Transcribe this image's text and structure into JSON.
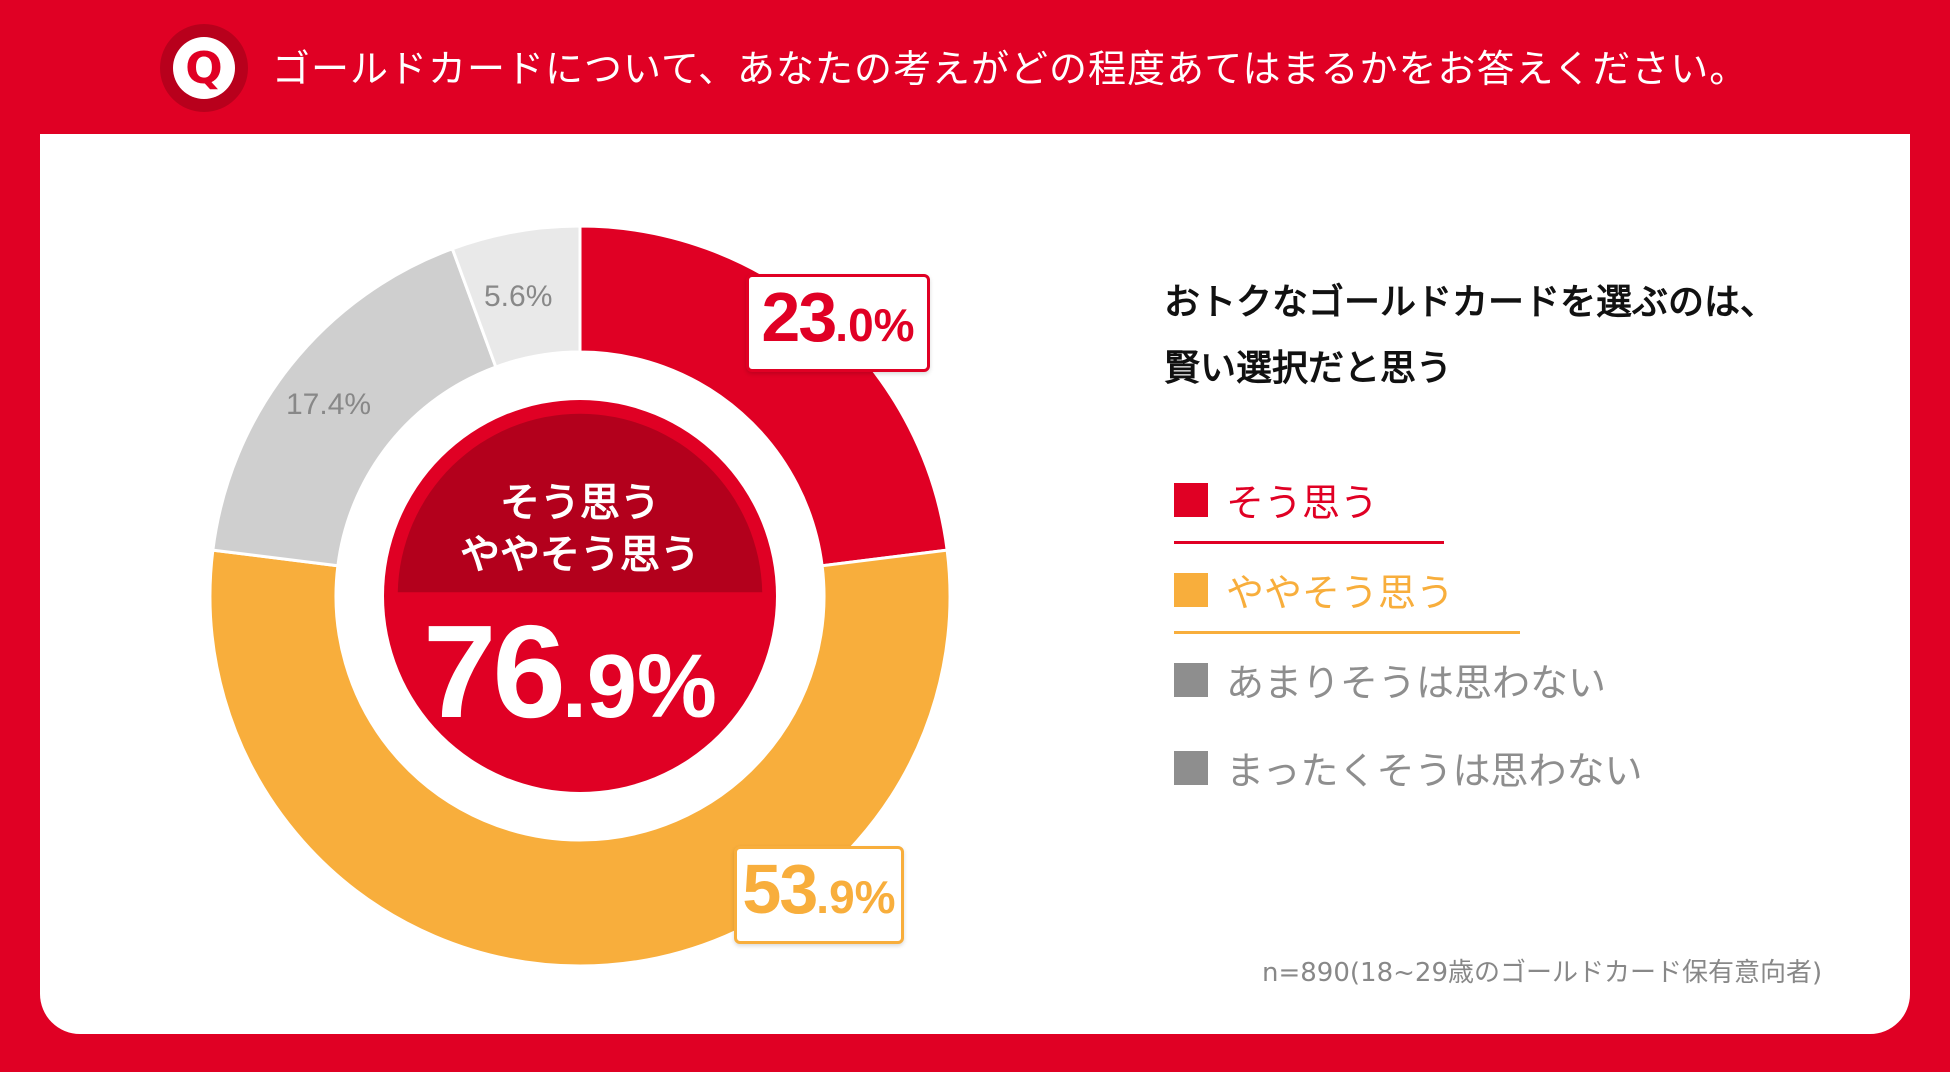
{
  "header": {
    "q_letter": "Q",
    "question": "ゴールドカードについて、あなたの考えがどの程度あてはまるかをお答えください。"
  },
  "chart_data": {
    "type": "pie",
    "title": "おトクなゴールドカードを選ぶのは、賢い選択だと思う",
    "title_lines": [
      "おトクなゴールドカードを選ぶのは、",
      "賢い選択だと思う"
    ],
    "series": [
      {
        "name": "そう思う",
        "value": 23.0,
        "color": "#e00024",
        "label_big": "23",
        "label_small": ".0%"
      },
      {
        "name": "ややそう思う",
        "value": 53.9,
        "color": "#f8ae3c",
        "label_big": "53",
        "label_small": ".9%"
      },
      {
        "name": "あまりそうは思わない",
        "value": 17.4,
        "color": "#cfcfcf",
        "label": "17.4%"
      },
      {
        "name": "まったくそうは思わない",
        "value": 5.6,
        "color": "#e9e9e9",
        "label": "5.6%"
      }
    ],
    "center": {
      "line1": "そう思う",
      "line2": "ややそう思う",
      "total_big": "76",
      "total_small": ".9%",
      "total_value": 76.9
    },
    "note": "n=890(18~29歳のゴールドカード保有意向者)"
  },
  "colors": {
    "brand_red": "#e00024",
    "dark_red": "#b3001c",
    "orange": "#f8ae3c",
    "gray_legend": "#8e8e8e",
    "gray_text": "#888888"
  }
}
